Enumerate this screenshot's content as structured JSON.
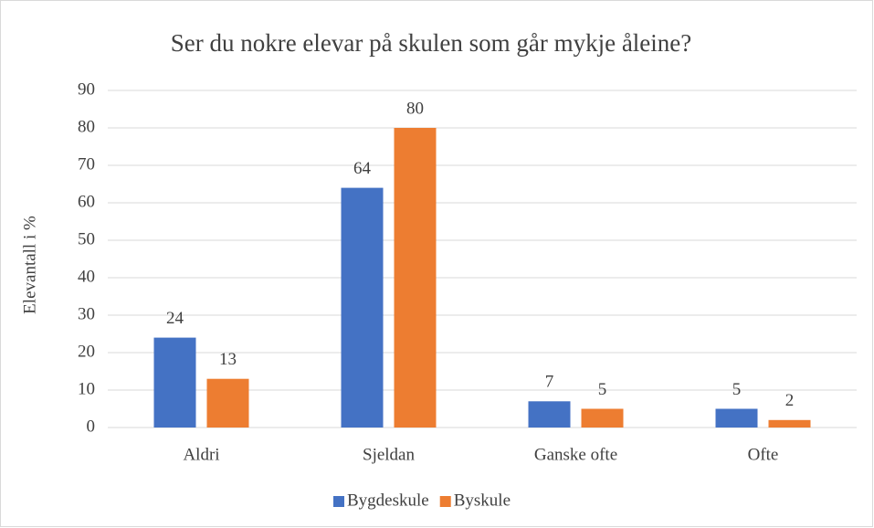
{
  "chart_data": {
    "type": "bar",
    "title": "Ser du nokre elevar på skulen som går mykje åleine?",
    "y_label": "Elevantall i %",
    "categories": [
      "Aldri",
      "Sjeldan",
      "Ganske ofte",
      "Ofte"
    ],
    "series": [
      {
        "name": "Bygdeskule",
        "color": "#4472c4",
        "values": [
          24,
          64,
          7,
          5
        ]
      },
      {
        "name": "Byskule",
        "color": "#ed7d31",
        "values": [
          13,
          80,
          5,
          2
        ]
      }
    ],
    "ylim": [
      0,
      90
    ],
    "yticks": [
      0,
      10,
      20,
      30,
      40,
      50,
      60,
      70,
      80,
      90
    ],
    "grid": true,
    "legend": "bottom"
  }
}
